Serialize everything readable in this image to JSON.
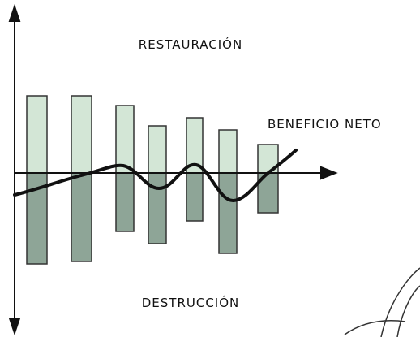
{
  "labels": {
    "top": "RESTAURACIÓN",
    "line": "BENEFICIO NETO",
    "bottom": "DESTRUCCIÓN"
  }
}
